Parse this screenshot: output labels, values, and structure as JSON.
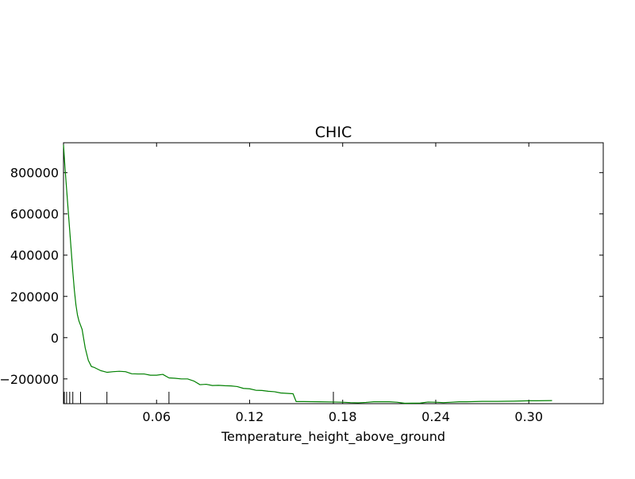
{
  "chart_data": {
    "type": "line",
    "title": "CHIC",
    "xlabel": "Temperature_height_above_ground",
    "ylabel": "",
    "xlim": [
      0.0,
      0.348
    ],
    "ylim": [
      -320000,
      945000
    ],
    "xticks": [
      0.06,
      0.12,
      0.18,
      0.24,
      0.3
    ],
    "xtick_labels": [
      "0.06",
      "0.12",
      "0.18",
      "0.24",
      "0.30"
    ],
    "yticks": [
      -200000,
      0,
      200000,
      400000,
      600000,
      800000
    ],
    "ytick_labels": [
      "−200000",
      "0",
      "200000",
      "400000",
      "600000",
      "800000"
    ],
    "grid": false,
    "series": [
      {
        "color": "#008000",
        "x": [
          0.0,
          0.001,
          0.002,
          0.003,
          0.004,
          0.005,
          0.006,
          0.007,
          0.008,
          0.009,
          0.01,
          0.012,
          0.014,
          0.016,
          0.018,
          0.02,
          0.024,
          0.028,
          0.032,
          0.036,
          0.04,
          0.044,
          0.048,
          0.052,
          0.056,
          0.06,
          0.064,
          0.068,
          0.072,
          0.076,
          0.08,
          0.084,
          0.088,
          0.092,
          0.096,
          0.1,
          0.104,
          0.108,
          0.112,
          0.116,
          0.12,
          0.124,
          0.128,
          0.132,
          0.136,
          0.14,
          0.144,
          0.148,
          0.15,
          0.155,
          0.165,
          0.175,
          0.18,
          0.185,
          0.19,
          0.195,
          0.2,
          0.21,
          0.215,
          0.22,
          0.23,
          0.235,
          0.24,
          0.245,
          0.25,
          0.255,
          0.26,
          0.27,
          0.28,
          0.29,
          0.3,
          0.305,
          0.315
        ],
        "y": [
          935000,
          820000,
          720000,
          620000,
          520000,
          420000,
          320000,
          230000,
          160000,
          110000,
          80000,
          40000,
          -50000,
          -110000,
          -140000,
          -145000,
          -160000,
          -168000,
          -165000,
          -163000,
          -165000,
          -175000,
          -176000,
          -176000,
          -182000,
          -182000,
          -178000,
          -195000,
          -197000,
          -200000,
          -200000,
          -210000,
          -228000,
          -226000,
          -232000,
          -231000,
          -233000,
          -234000,
          -237000,
          -246000,
          -248000,
          -255000,
          -256000,
          -260000,
          -262000,
          -268000,
          -270000,
          -272000,
          -310000,
          -310000,
          -311000,
          -312000,
          -313000,
          -315000,
          -316000,
          -314000,
          -311000,
          -311000,
          -313000,
          -318000,
          -317000,
          -312000,
          -313000,
          -315000,
          -313000,
          -311000,
          -311000,
          -309000,
          -309000,
          -308000,
          -306000,
          -306000,
          -305000
        ]
      }
    ],
    "rug_x": [
      0.0005,
      0.002,
      0.004,
      0.006,
      0.011,
      0.028,
      0.068,
      0.174
    ]
  }
}
